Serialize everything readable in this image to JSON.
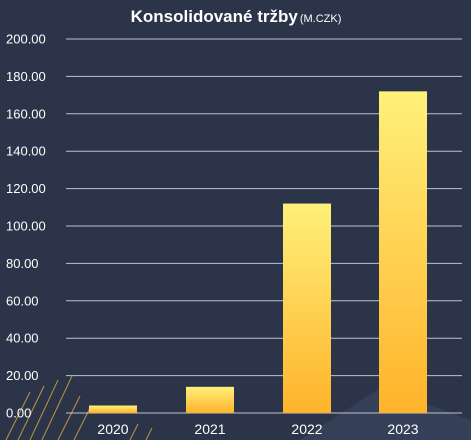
{
  "chart_data": {
    "type": "bar",
    "title": "Konsolidované tržby",
    "unit": "(M.CZK)",
    "categories": [
      "2020",
      "2021",
      "2022",
      "2023"
    ],
    "values": [
      4,
      14,
      112,
      172
    ],
    "ylim": [
      0,
      200
    ],
    "yticks": [
      "0.00",
      "20.00",
      "40.00",
      "60.00",
      "80.00",
      "100.00",
      "120.00",
      "140.00",
      "160.00",
      "180.00",
      "200.00"
    ],
    "grid": true,
    "bar_color_top": "#fff07a",
    "bar_color_bottom": "#ffb32a",
    "background": "#2b3448"
  }
}
